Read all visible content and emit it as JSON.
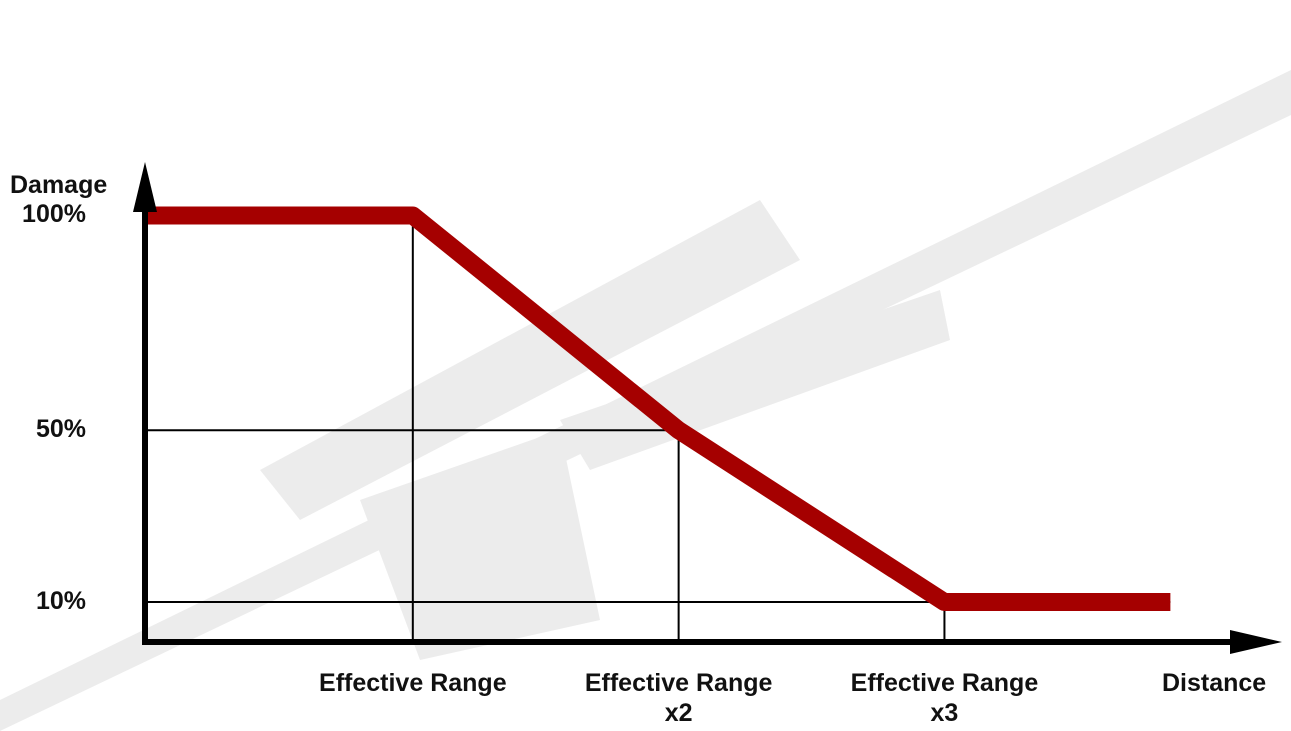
{
  "chart_data": {
    "type": "line",
    "y_label": "Damage",
    "x_label": "Distance",
    "x": [
      0,
      1,
      2,
      3,
      3.85
    ],
    "series": [
      {
        "color": "#a50000",
        "values": [
          100,
          100,
          50,
          10,
          10
        ]
      }
    ],
    "xlim": [
      0,
      4.3
    ],
    "ylim": [
      0,
      132
    ],
    "xticks": [
      {
        "value": 1,
        "label": "Effective Range"
      },
      {
        "value": 2,
        "label": "Effective Range\nx2"
      },
      {
        "value": 3,
        "label": "Effective Range\nx3"
      }
    ],
    "yticks": [
      {
        "value": 10,
        "label": "10%"
      },
      {
        "value": 50,
        "label": "50%"
      },
      {
        "value": 100,
        "label": "100%"
      }
    ]
  }
}
